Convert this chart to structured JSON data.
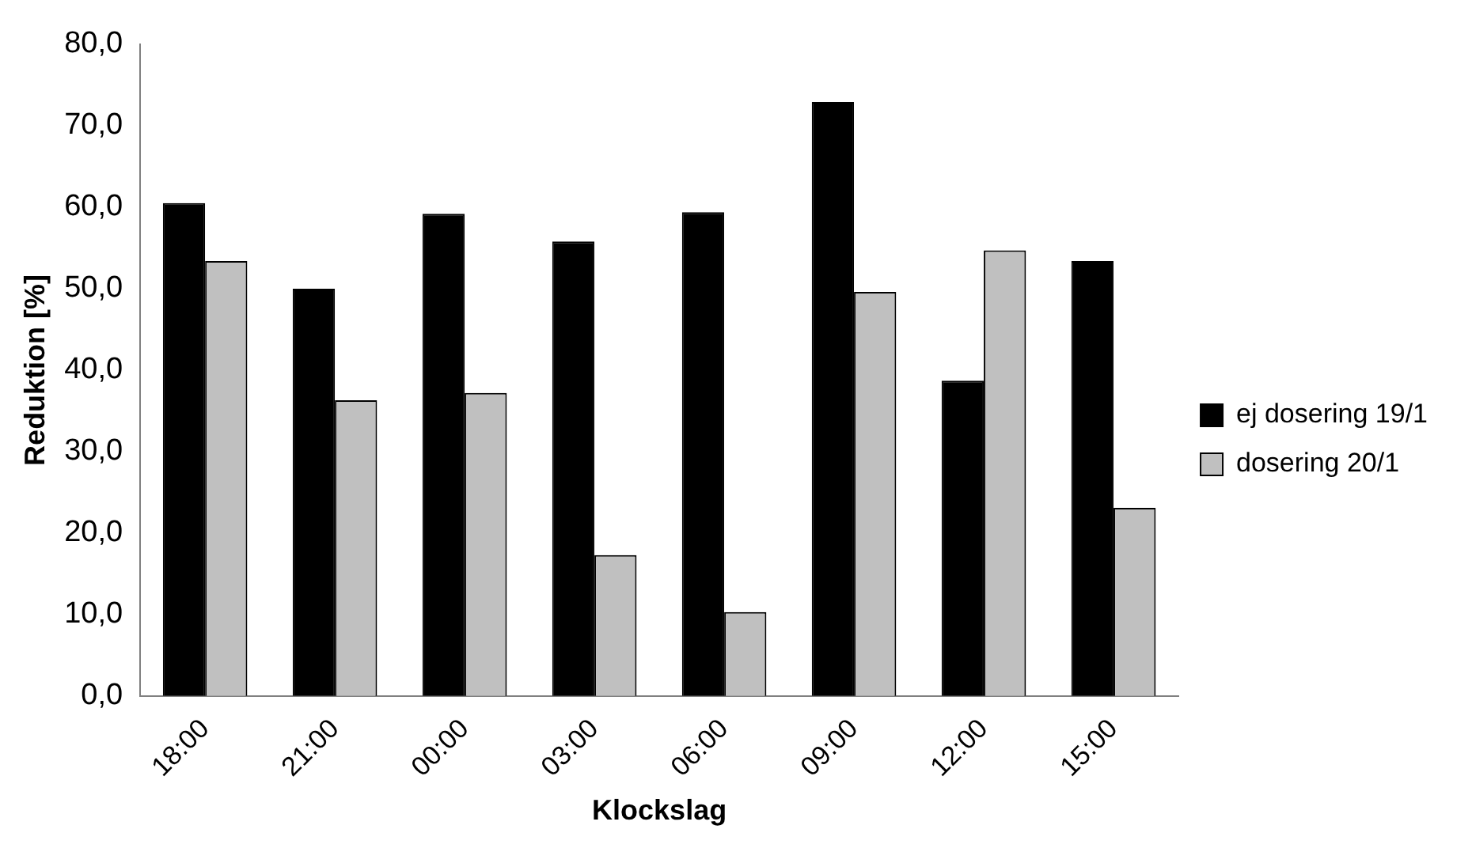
{
  "chart_data": {
    "type": "bar",
    "xlabel": "Klockslag",
    "ylabel": "Reduktion [%]",
    "categories": [
      "18:00",
      "21:00",
      "00:00",
      "03:00",
      "06:00",
      "09:00",
      "12:00",
      "15:00"
    ],
    "series": [
      {
        "name": "ej dosering 19/1",
        "color": "#000000",
        "values": [
          60.5,
          50.0,
          59.2,
          55.8,
          59.4,
          72.9,
          38.7,
          53.4
        ]
      },
      {
        "name": "dosering 20/1",
        "color": "#c0c0c0",
        "values": [
          53.4,
          36.3,
          37.2,
          17.3,
          10.3,
          49.6,
          54.7,
          23.1
        ]
      }
    ],
    "ylim": [
      0,
      80
    ],
    "yticks": [
      {
        "value": 0,
        "label": "0,0"
      },
      {
        "value": 10,
        "label": "10,0"
      },
      {
        "value": 20,
        "label": "20,0"
      },
      {
        "value": 30,
        "label": "30,0"
      },
      {
        "value": 40,
        "label": "40,0"
      },
      {
        "value": 50,
        "label": "50,0"
      },
      {
        "value": 60,
        "label": "60,0"
      },
      {
        "value": 70,
        "label": "70,0"
      },
      {
        "value": 80,
        "label": "80,0"
      }
    ],
    "grid": false,
    "legend": "right"
  }
}
